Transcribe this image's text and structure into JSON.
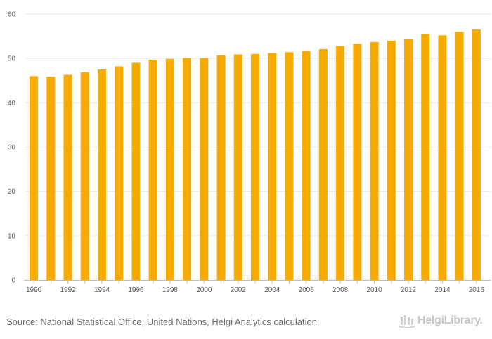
{
  "chart_data": {
    "type": "bar",
    "title": "",
    "xlabel": "",
    "ylabel": "",
    "ylim": [
      0,
      60
    ],
    "yticks": [
      0,
      10,
      20,
      30,
      40,
      50,
      60
    ],
    "grid": true,
    "legend": "none",
    "bar_color": "#f7aa00",
    "categories": [
      "1990",
      "1991",
      "1992",
      "1993",
      "1994",
      "1995",
      "1996",
      "1997",
      "1998",
      "1999",
      "2000",
      "2001",
      "2002",
      "2003",
      "2004",
      "2005",
      "2006",
      "2007",
      "2008",
      "2009",
      "2010",
      "2011",
      "2012",
      "2013",
      "2014",
      "2015",
      "2016"
    ],
    "x_tick_labels": [
      "1990",
      "1992",
      "1994",
      "1996",
      "1998",
      "2000",
      "2002",
      "2004",
      "2006",
      "2008",
      "2010",
      "2012",
      "2014",
      "2016"
    ],
    "values": [
      46.0,
      45.9,
      46.3,
      46.9,
      47.5,
      48.2,
      49.0,
      49.7,
      49.9,
      50.1,
      50.1,
      50.7,
      50.9,
      51.0,
      51.2,
      51.4,
      51.7,
      52.1,
      52.8,
      53.3,
      53.7,
      54.0,
      54.3,
      55.5,
      55.2,
      56.0,
      56.5
    ]
  },
  "footer": {
    "source": "Source: National Statistical Office, United Nations, Helgi Analytics calculation",
    "logo_text": "HelgiLibrary.",
    "logo_icon": "helgi-library-icon"
  }
}
